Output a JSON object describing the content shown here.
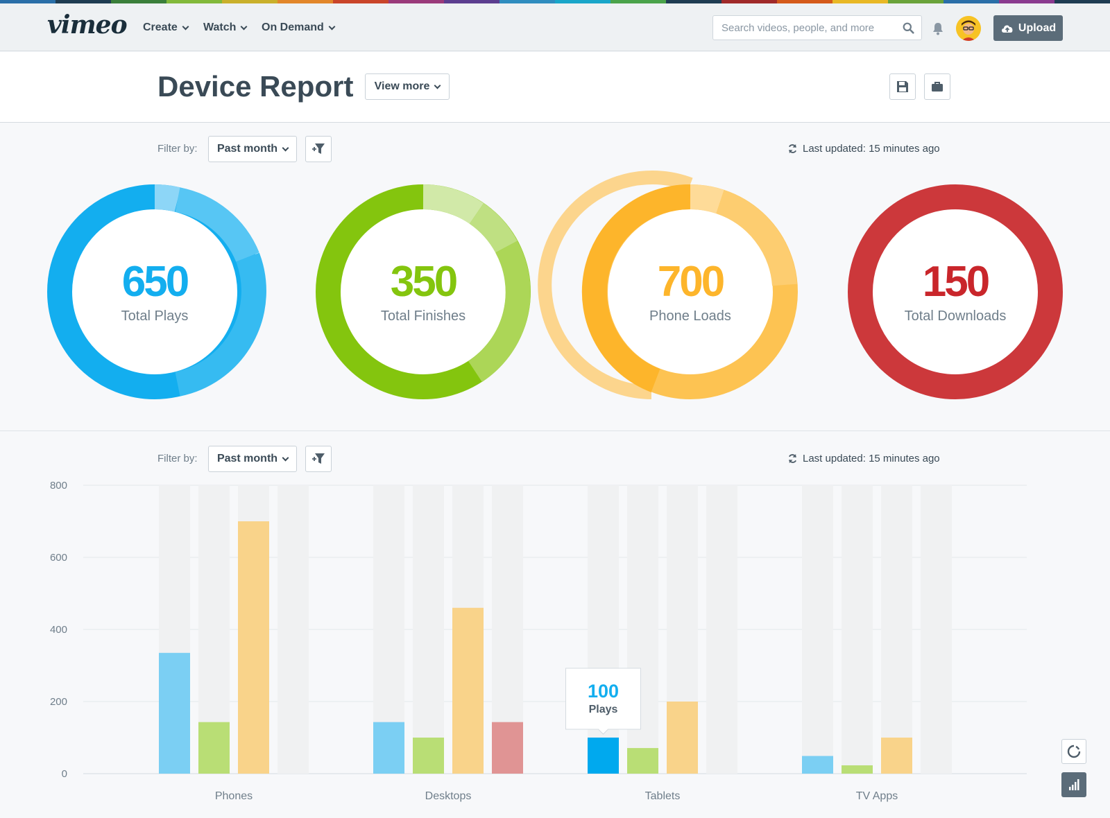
{
  "rainbow": [
    "#2a6fa8",
    "#1f3c52",
    "#3a7f3a",
    "#82b93a",
    "#c9b02b",
    "#e2862a",
    "#c9452a",
    "#9a3a7a",
    "#5b3e8f",
    "#2f8dbf",
    "#19a6c9",
    "#4aa34a",
    "#1f3c52",
    "#a02a2a",
    "#d45a1a",
    "#e8b825",
    "#6aa33a",
    "#2a6fa8",
    "#8a3a8f",
    "#1f3c52"
  ],
  "nav": {
    "logo": "vimeo",
    "links": [
      "Create",
      "Watch",
      "On Demand"
    ],
    "search_placeholder": "Search videos, people, and more",
    "upload_label": "Upload"
  },
  "header": {
    "title": "Device Report",
    "view_more": "View more"
  },
  "summary": {
    "filter_label": "Filter by:",
    "filter_value": "Past month",
    "last_updated": "Last updated: 15 minutes ago",
    "metrics": [
      {
        "value": "650",
        "label": "Total Plays",
        "color": "#13aeef"
      },
      {
        "value": "350",
        "label": "Total Finishes",
        "color": "#84c50e"
      },
      {
        "value": "700",
        "label": "Phone Loads",
        "color": "#fdb52b"
      },
      {
        "value": "150",
        "label": "Total Downloads",
        "color": "#cc383b"
      }
    ]
  },
  "chart_section": {
    "filter_label": "Filter by:",
    "filter_value": "Past month",
    "last_updated": "Last updated: 15 minutes ago",
    "tooltip": {
      "value": "100",
      "label": "Plays"
    }
  },
  "chart_data": {
    "type": "bar",
    "categories": [
      "Phones",
      "Desktops",
      "Tablets",
      "TV Apps"
    ],
    "series": [
      {
        "values": [
          335,
          143,
          100,
          49
        ],
        "color": "#7bcff3"
      },
      {
        "values": [
          143,
          100,
          71,
          23
        ],
        "color": "#b9de75"
      },
      {
        "values": [
          700,
          460,
          200,
          100
        ],
        "color": "#f9d38a"
      },
      {
        "values": [
          0,
          143,
          0,
          0
        ],
        "color": "#e09494"
      }
    ],
    "highlight": {
      "series": 0,
      "category": 2,
      "color": "#00a9ee"
    },
    "ylim": [
      0,
      800
    ],
    "yticks": [
      "800",
      "600",
      "400",
      "200",
      "0"
    ],
    "grid": true
  }
}
